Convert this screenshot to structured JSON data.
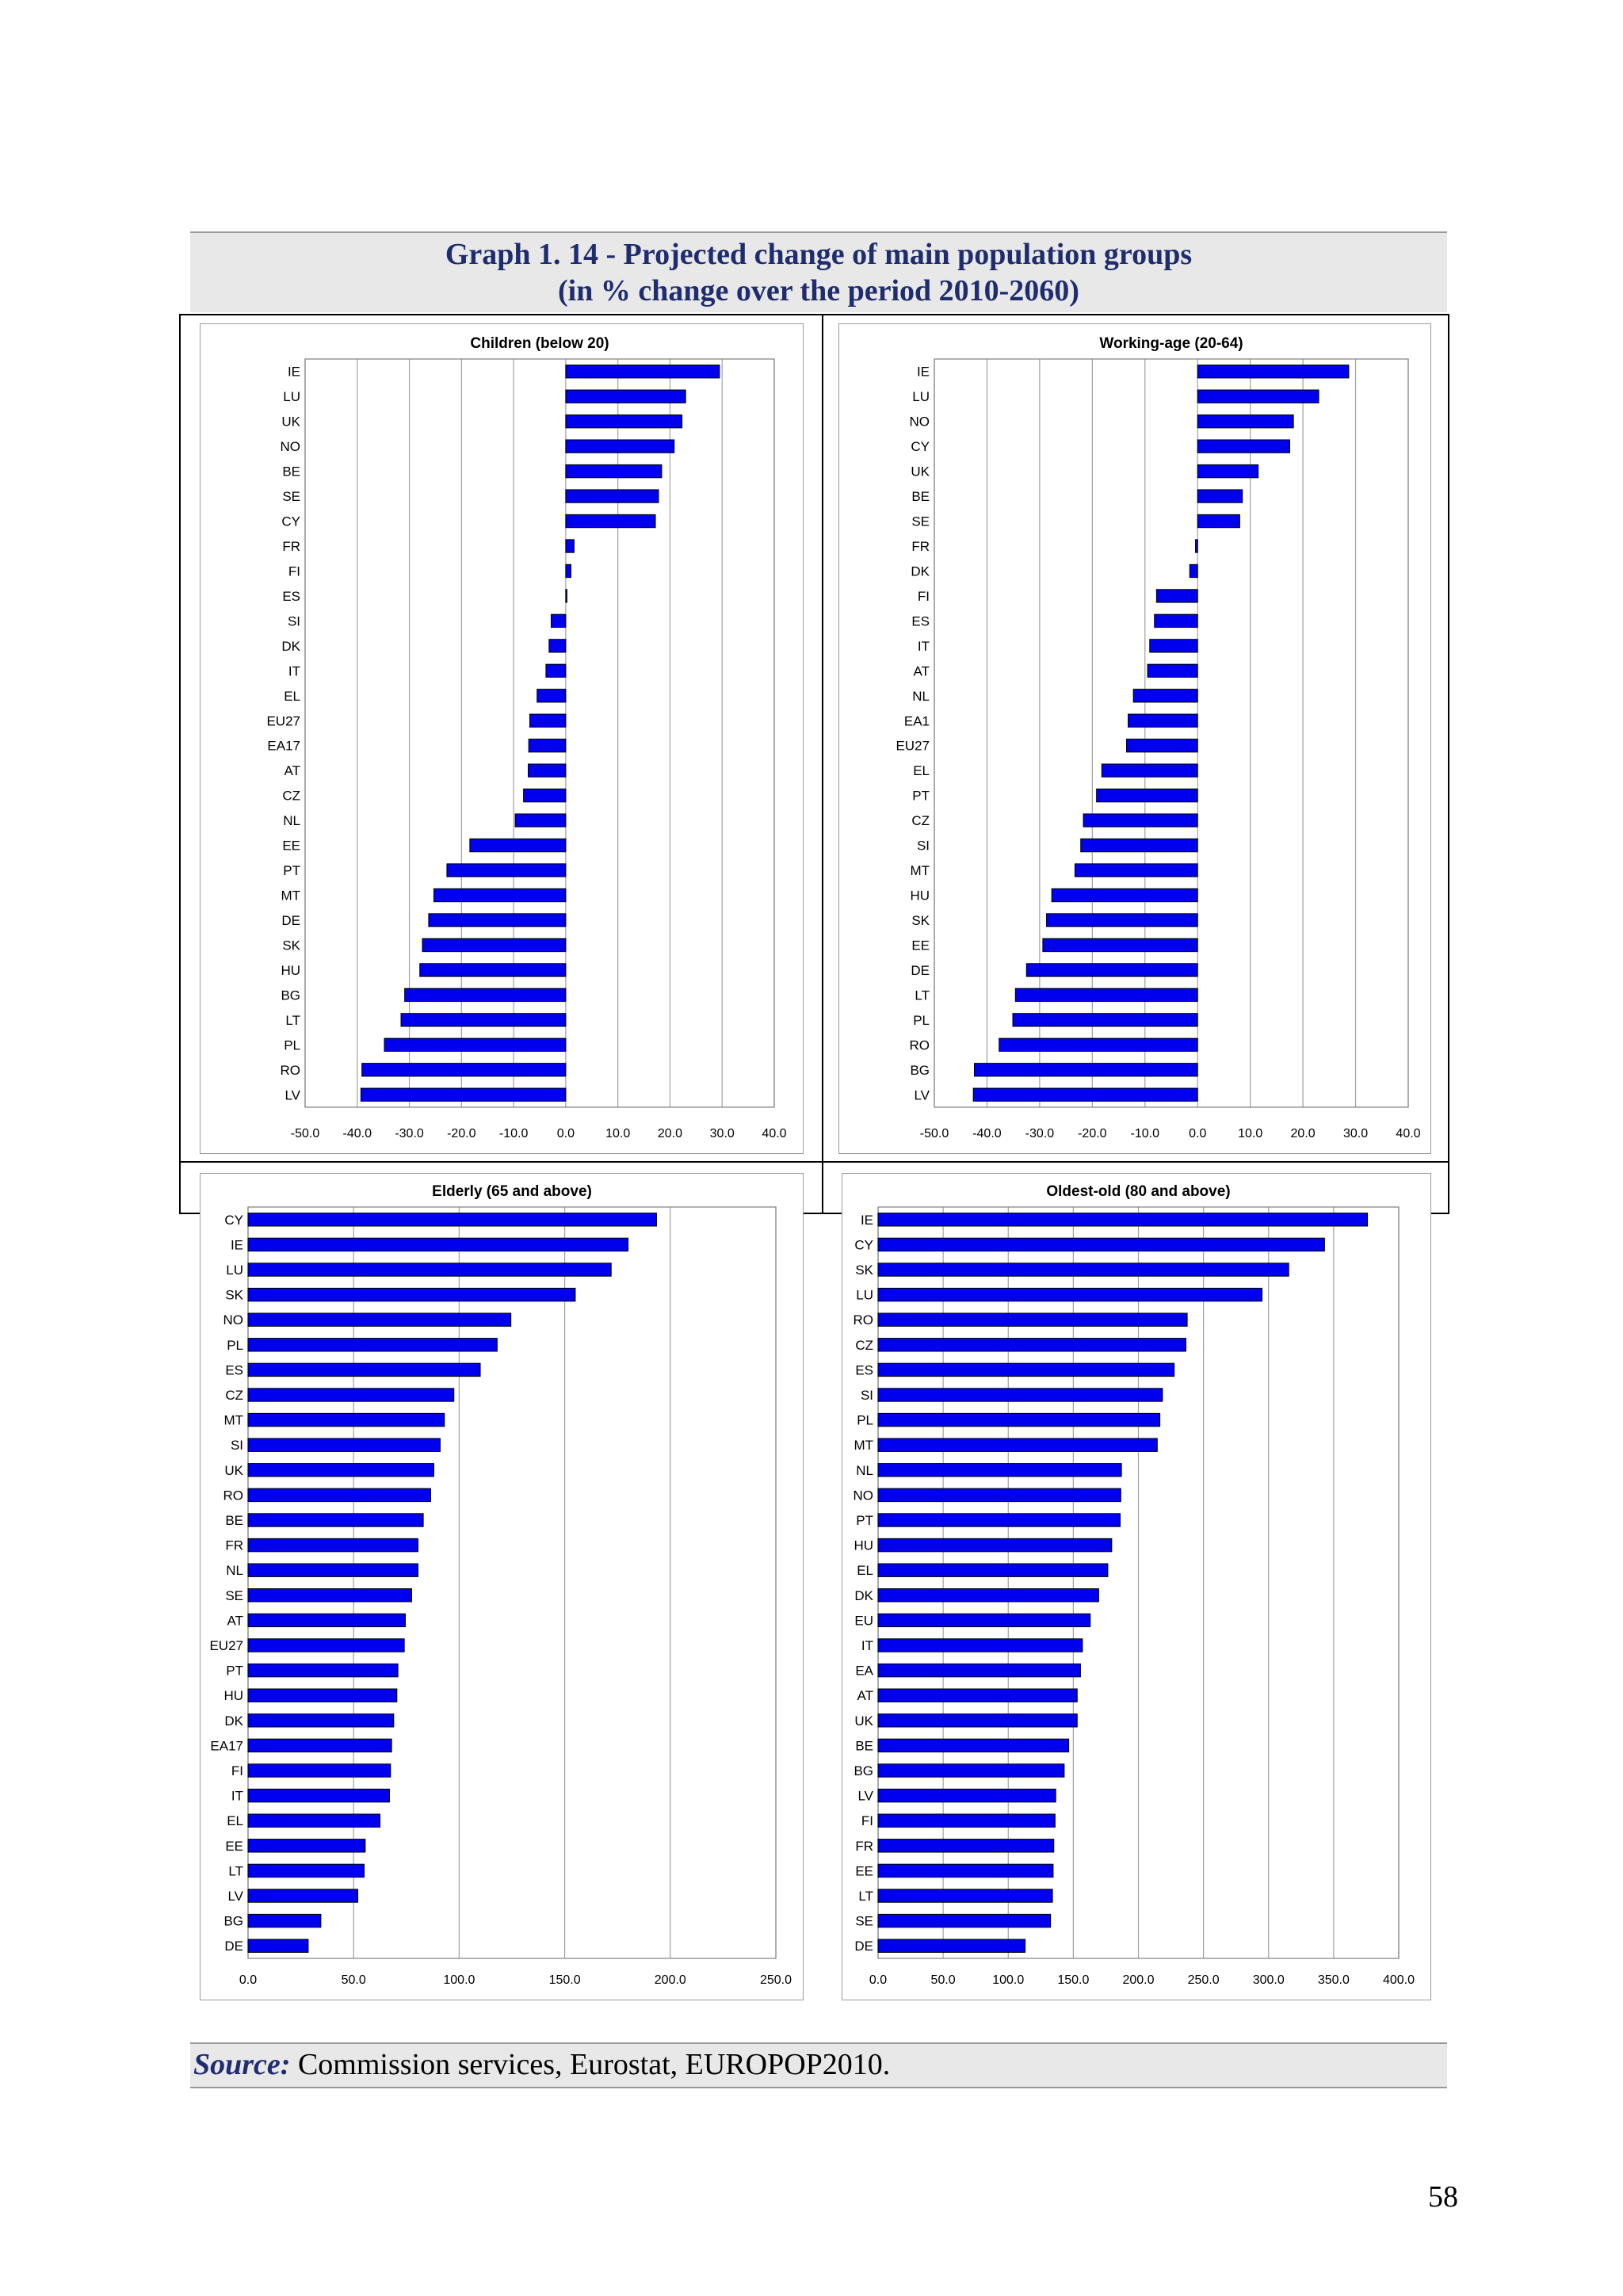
{
  "title": {
    "line1": "Graph 1. 14 - Projected change of main population groups",
    "line2": "(in % change over the period 2010-2060)"
  },
  "source": {
    "label": "Source:",
    "text": " Commission services, Eurostat, EUROPOP2010."
  },
  "page_number": "58",
  "colors": {
    "bar_fill": "#0000ee",
    "bar_stroke": "#000000",
    "title": "#1f2d6e",
    "grid": "#a0a0a0"
  },
  "chart_data": [
    {
      "type": "bar",
      "orientation": "horizontal",
      "title": "Children (below 20)",
      "xlim": [
        -50,
        40
      ],
      "ticks": [
        "-50.0",
        "-40.0",
        "-30.0",
        "-20.0",
        "-10.0",
        "0.0",
        "10.0",
        "20.0",
        "30.0",
        "40.0"
      ],
      "categories": [
        "IE",
        "LU",
        "UK",
        "NO",
        "BE",
        "SE",
        "CY",
        "FR",
        "FI",
        "ES",
        "SI",
        "DK",
        "IT",
        "EL",
        "EU27",
        "EA17",
        "AT",
        "CZ",
        "NL",
        "EE",
        "PT",
        "MT",
        "DE",
        "SK",
        "HU",
        "BG",
        "LT",
        "PL",
        "RO",
        "LV"
      ],
      "values": [
        29.5,
        23.0,
        22.3,
        20.8,
        18.4,
        17.8,
        17.2,
        1.6,
        1.0,
        0.2,
        -2.8,
        -3.2,
        -3.8,
        -5.5,
        -6.9,
        -7.1,
        -7.2,
        -8.1,
        -9.7,
        -18.4,
        -22.8,
        -25.3,
        -26.3,
        -27.5,
        -28.0,
        -30.9,
        -31.6,
        -34.8,
        -39.1,
        -39.3
      ]
    },
    {
      "type": "bar",
      "orientation": "horizontal",
      "title": "Working-age (20-64)",
      "xlim": [
        -50,
        40
      ],
      "ticks": [
        "-50.0",
        "-40.0",
        "-30.0",
        "-20.0",
        "-10.0",
        "0.0",
        "10.0",
        "20.0",
        "30.0",
        "40.0"
      ],
      "categories": [
        "IE",
        "LU",
        "NO",
        "CY",
        "UK",
        "BE",
        "SE",
        "FR",
        "DK",
        "FI",
        "ES",
        "IT",
        "AT",
        "NL",
        "EA1",
        "EU27",
        "EL",
        "PT",
        "CZ",
        "SI",
        "MT",
        "HU",
        "SK",
        "EE",
        "DE",
        "LT",
        "PL",
        "RO",
        "BG",
        "LV"
      ],
      "values": [
        28.7,
        23.0,
        18.2,
        17.5,
        11.5,
        8.5,
        8.0,
        -0.4,
        -1.5,
        -7.8,
        -8.2,
        -9.1,
        -9.5,
        -12.2,
        -13.2,
        -13.5,
        -18.2,
        -19.2,
        -21.7,
        -22.2,
        -23.3,
        -27.7,
        -28.7,
        -29.4,
        -32.5,
        -34.6,
        -35.1,
        -37.7,
        -42.4,
        -42.6
      ]
    },
    {
      "type": "bar",
      "orientation": "horizontal",
      "title": "Elderly (65 and above)",
      "xlim": [
        0,
        250
      ],
      "ticks": [
        "0.0",
        "50.0",
        "100.0",
        "150.0",
        "200.0",
        "250.0"
      ],
      "categories": [
        "CY",
        "IE",
        "LU",
        "SK",
        "NO",
        "PL",
        "ES",
        "CZ",
        "MT",
        "SI",
        "UK",
        "RO",
        "BE",
        "FR",
        "NL",
        "SE",
        "AT",
        "EU27",
        "PT",
        "HU",
        "DK",
        "EA17",
        "FI",
        "IT",
        "EL",
        "EE",
        "LT",
        "LV",
        "BG",
        "DE"
      ],
      "values": [
        193.5,
        180.0,
        172.0,
        155.0,
        124.5,
        118.0,
        110.0,
        97.5,
        93.0,
        91.0,
        88.0,
        86.5,
        83.0,
        80.5,
        80.5,
        77.5,
        74.5,
        74.0,
        71.0,
        70.5,
        69.0,
        68.0,
        67.5,
        67.0,
        62.5,
        55.5,
        55.0,
        52.0,
        34.5,
        28.5
      ]
    },
    {
      "type": "bar",
      "orientation": "horizontal",
      "title": "Oldest-old (80 and above)",
      "xlim": [
        0,
        400
      ],
      "ticks": [
        "0.0",
        "50.0",
        "100.0",
        "150.0",
        "200.0",
        "250.0",
        "300.0",
        "350.0",
        "400.0"
      ],
      "categories": [
        "IE",
        "CY",
        "SK",
        "LU",
        "RO",
        "CZ",
        "ES",
        "SI",
        "PL",
        "MT",
        "NL",
        "NO",
        "PT",
        "HU",
        "EL",
        "DK",
        "EU",
        "IT",
        "EA",
        "AT",
        "UK",
        "BE",
        "BG",
        "LV",
        "FI",
        "FR",
        "EE",
        "LT",
        "SE",
        "DE"
      ],
      "values": [
        376.0,
        343.0,
        315.5,
        295.0,
        237.5,
        236.5,
        227.5,
        218.5,
        216.5,
        214.5,
        187.0,
        186.5,
        186.0,
        179.5,
        176.5,
        169.5,
        163.0,
        157.0,
        155.5,
        153.0,
        153.0,
        146.5,
        143.0,
        136.5,
        136.0,
        135.0,
        134.5,
        134.0,
        132.5,
        113.0
      ]
    }
  ]
}
